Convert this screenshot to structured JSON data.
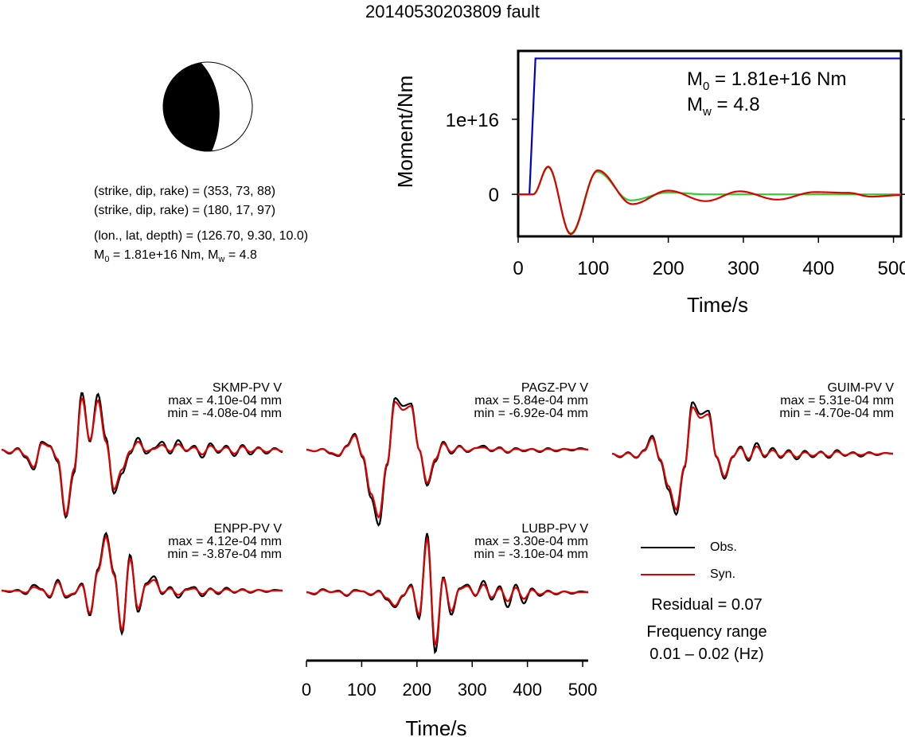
{
  "title": "20140530203809 fault",
  "mechanism": {
    "nodal_plane_1": "(strike, dip, rake) = (353, 73, 88)",
    "nodal_plane_2": "(strike, dip, rake) = (180, 17, 97)",
    "location": "(lon., lat, depth) = (126.70, 9.30, 10.0)",
    "m0_prefix": "M",
    "m0_sub": "0",
    "m0_mid": " = 1.81e+16 Nm, M",
    "mw_sub": "w",
    "mw_suffix": " = 4.8"
  },
  "moment_panel": {
    "m0_main": "M",
    "m0_sub": "0",
    "m0_value": " = 1.81e+16 Nm",
    "mw_main": "M",
    "mw_sub": "w",
    "mw_value": " = 4.8"
  },
  "colors": {
    "moment": "#0000cc",
    "stf_green": "#33cc33",
    "synthetic": "#dd0000",
    "observed": "#000000"
  },
  "chart_data": [
    {
      "type": "line",
      "xlabel": "Time/s",
      "ylabel": "Moment/Nm",
      "xlim": [
        0,
        510
      ],
      "xticks": [
        0,
        100,
        200,
        300,
        400,
        500
      ],
      "ytick_labels": [
        "0",
        "1e+16"
      ],
      "ytick_values": [
        0,
        1e+16
      ],
      "ylim": [
        -5600000000000000.0,
        1.91e+16
      ],
      "series": [
        {
          "name": "moment",
          "x": [
            0,
            15,
            23,
            510
          ],
          "y": [
            0,
            0,
            1.81e+16,
            1.81e+16
          ]
        },
        {
          "name": "stf_green",
          "kind": "damped",
          "x": [
            0,
            20,
            40,
            70,
            105,
            150,
            200,
            250,
            300,
            350,
            400,
            450,
            510
          ],
          "y": [
            0,
            0,
            3600000000000000.0,
            -5200000000000000.0,
            3000000000000000.0,
            -800000000000000.0,
            250000000000000.0,
            0,
            0,
            0,
            0,
            0,
            0
          ]
        },
        {
          "name": "stf_red",
          "kind": "damped",
          "x": [
            0,
            20,
            40,
            70,
            106,
            152,
            200,
            250,
            295,
            345,
            395,
            440,
            470,
            510
          ],
          "y": [
            0,
            0,
            3700000000000000.0,
            -5300000000000000.0,
            3200000000000000.0,
            -1300000000000000.0,
            500000000000000.0,
            -900000000000000.0,
            400000000000000.0,
            -700000000000000.0,
            300000000000000.0,
            200000000000000.0,
            -300000000000000.0,
            -100000000000000.0
          ]
        }
      ]
    },
    {
      "type": "line",
      "xlabel": "Time/s",
      "xlim": [
        0,
        510
      ],
      "xticks": [
        0,
        100,
        200,
        300,
        400,
        500
      ],
      "stations": [
        {
          "name": "SKMP-PV V",
          "max": "max = 4.10e-04 mm",
          "min": "min = -4.08e-04 mm",
          "obs": [
            0,
            -0.05,
            0.02,
            -0.1,
            -0.25,
            0.1,
            0.05,
            -0.15,
            -0.85,
            -0.3,
            0.72,
            0.1,
            0.7,
            0.15,
            -0.55,
            -0.3,
            -0.05,
            0.15,
            -0.05,
            0.02,
            0.1,
            -0.05,
            0.12,
            -0.02,
            0.05,
            -0.1,
            0.08,
            -0.04,
            0.05,
            -0.08,
            0.06,
            -0.06,
            0.03,
            -0.05,
            0.02,
            -0.03
          ],
          "syn": [
            0,
            -0.04,
            0.01,
            -0.08,
            -0.22,
            0.08,
            0.04,
            -0.12,
            -0.82,
            -0.25,
            0.65,
            0.12,
            0.62,
            0.1,
            -0.5,
            -0.25,
            -0.02,
            0.1,
            -0.02,
            0.01,
            0.06,
            -0.02,
            0.07,
            -0.01,
            0.03,
            -0.06,
            0.05,
            -0.02,
            0.03,
            -0.05,
            0.04,
            -0.03,
            0.02,
            -0.03,
            0.01,
            -0.02
          ]
        },
        {
          "name": "PAGZ-PV V",
          "max": "max = 5.84e-04 mm",
          "min": "min = -6.92e-04 mm",
          "obs": [
            0,
            -0.02,
            0.01,
            -0.05,
            -0.08,
            0.05,
            0.2,
            -0.1,
            -0.6,
            -0.95,
            -0.2,
            0.65,
            0.55,
            0.58,
            0.0,
            -0.45,
            -0.15,
            0.1,
            -0.05,
            0.05,
            -0.03,
            0.02,
            0.05,
            -0.02,
            0.03,
            -0.04,
            0.02,
            -0.02,
            0.01,
            -0.03,
            0.02,
            -0.02,
            0.01,
            -0.01,
            0.02,
            0.0
          ],
          "syn": [
            0,
            -0.02,
            0.01,
            -0.04,
            -0.07,
            0.04,
            0.18,
            -0.08,
            -0.55,
            -0.85,
            -0.18,
            0.6,
            0.5,
            0.55,
            0.0,
            -0.42,
            -0.12,
            0.08,
            -0.03,
            0.04,
            -0.02,
            0.02,
            0.03,
            -0.01,
            0.02,
            -0.03,
            0.01,
            -0.01,
            0.01,
            -0.02,
            0.01,
            -0.01,
            0.01,
            0.0,
            0.01,
            0.0
          ]
        },
        {
          "name": "GUIM-PV V",
          "max": "max = 5.31e-04 mm",
          "min": "min = -4.70e-04 mm",
          "obs": [
            0,
            -0.05,
            0.02,
            -0.06,
            0.05,
            0.25,
            -0.1,
            -0.5,
            -0.85,
            -0.2,
            0.72,
            0.55,
            0.6,
            -0.05,
            -0.35,
            -0.05,
            0.1,
            -0.1,
            0.15,
            -0.05,
            0.08,
            -0.06,
            0.05,
            -0.08,
            0.04,
            -0.05,
            0.03,
            -0.06,
            0.05,
            -0.03,
            0.02,
            -0.04,
            0.02,
            -0.02,
            0.01,
            0.0
          ],
          "syn": [
            0,
            -0.04,
            0.01,
            -0.05,
            0.04,
            0.22,
            -0.08,
            -0.45,
            -0.78,
            -0.18,
            0.65,
            0.5,
            0.55,
            -0.04,
            -0.32,
            -0.04,
            0.08,
            -0.07,
            0.1,
            -0.03,
            0.05,
            -0.04,
            0.03,
            -0.05,
            0.02,
            -0.03,
            0.02,
            -0.04,
            0.03,
            -0.02,
            0.01,
            -0.02,
            0.01,
            -0.01,
            0.01,
            0.0
          ]
        },
        {
          "name": "ENPP-PV V",
          "max": "max = 4.12e-04 mm",
          "min": "min = -3.87e-04 mm",
          "obs": [
            0,
            -0.02,
            0.01,
            -0.05,
            0.08,
            0.02,
            -0.1,
            0.15,
            -0.1,
            -0.05,
            0.1,
            -0.35,
            0.3,
            0.8,
            0.25,
            -0.6,
            0.5,
            -0.3,
            0.1,
            0.2,
            -0.05,
            0.05,
            -0.1,
            0.02,
            0.05,
            -0.08,
            0.03,
            -0.05,
            0.04,
            -0.03,
            0.02,
            -0.03,
            0.01,
            -0.02,
            0.01,
            0.0
          ],
          "syn": [
            0,
            -0.01,
            0.0,
            -0.03,
            0.05,
            0.01,
            -0.08,
            0.12,
            -0.08,
            -0.04,
            0.08,
            -0.32,
            0.27,
            0.75,
            0.22,
            -0.55,
            0.45,
            -0.25,
            0.08,
            0.15,
            -0.03,
            0.03,
            -0.06,
            0.01,
            0.03,
            -0.05,
            0.02,
            -0.03,
            0.02,
            -0.02,
            0.01,
            -0.02,
            0.01,
            -0.01,
            0.0,
            0.0
          ]
        },
        {
          "name": "LUBP-PV V",
          "max": "max = 3.30e-04 mm",
          "min": "min = -3.10e-04 mm",
          "obs": [
            0,
            -0.03,
            0.04,
            0.0,
            0.02,
            -0.05,
            0.03,
            0.01,
            -0.04,
            0.02,
            -0.1,
            -0.2,
            -0.05,
            0.1,
            -0.35,
            0.78,
            -0.8,
            0.2,
            -0.3,
            0.05,
            0.1,
            -0.05,
            0.15,
            -0.1,
            0.08,
            -0.2,
            0.1,
            -0.15,
            0.05,
            -0.05,
            0.02,
            -0.03,
            0.01,
            -0.02,
            0.01,
            0.0
          ],
          "syn": [
            0,
            -0.02,
            0.03,
            0.0,
            0.01,
            -0.04,
            0.02,
            0.01,
            -0.03,
            0.01,
            -0.08,
            -0.18,
            -0.04,
            0.08,
            -0.3,
            0.7,
            -0.7,
            0.18,
            -0.25,
            0.04,
            0.08,
            -0.04,
            0.1,
            -0.07,
            0.05,
            -0.12,
            0.06,
            -0.09,
            0.03,
            -0.03,
            0.01,
            -0.02,
            0.01,
            -0.01,
            0.0,
            0.0
          ]
        }
      ]
    }
  ],
  "legend": {
    "obs": "Obs.",
    "syn": "Syn.",
    "residual": "Residual = 0.07",
    "freq_label": "Frequency range",
    "freq_value": "0.01 – 0.02 (Hz)"
  }
}
